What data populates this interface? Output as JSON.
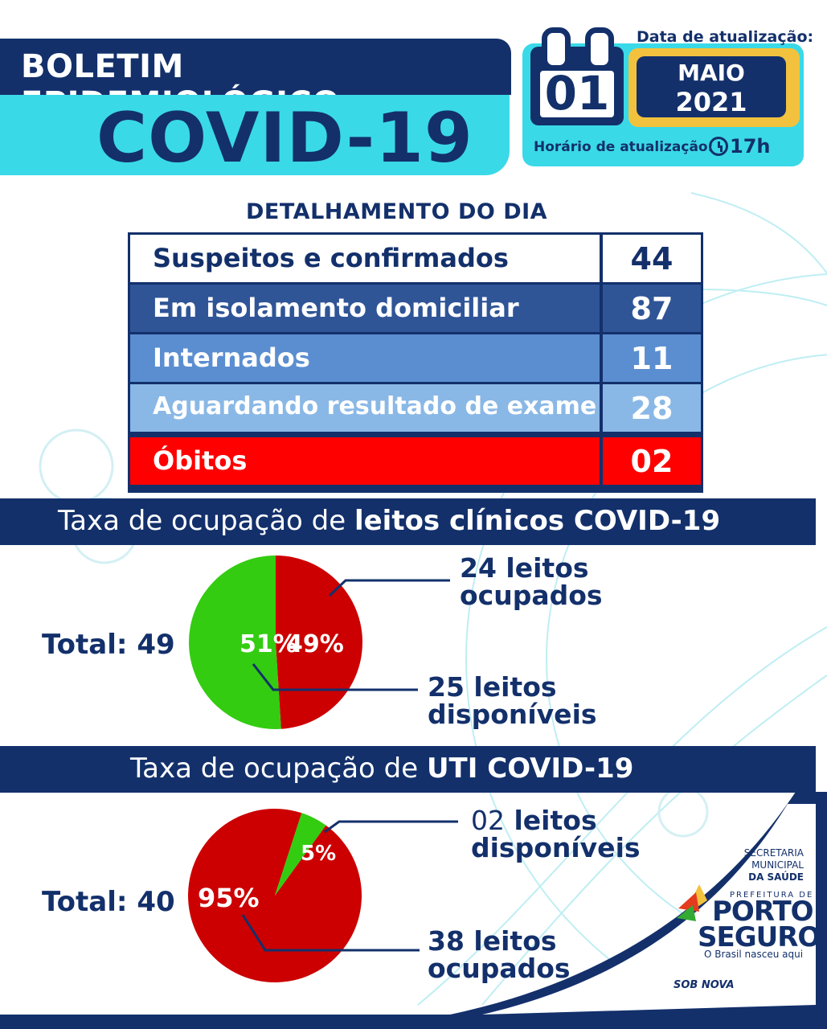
{
  "header": {
    "title_line1": "BOLETIM EPIDEMIOLÓGICO",
    "title_line2": "COVID-19"
  },
  "update": {
    "date_label": "Data de atualização:",
    "day": "01",
    "month": "MAIO",
    "year": "2021",
    "time_label": "Horário de atualização:",
    "time": "17h"
  },
  "detail": {
    "title": "DETALHAMENTO DO DIA",
    "rows": [
      {
        "label": "Suspeitos e confirmados",
        "value": "44",
        "bg": "#ffffff",
        "color": "#13306b"
      },
      {
        "label": "Em isolamento domiciliar",
        "value": "87",
        "bg": "#2f5597",
        "color": "#ffffff"
      },
      {
        "label": "Internados",
        "value": "11",
        "bg": "#5b8ed0",
        "color": "#ffffff"
      },
      {
        "label": "Aguardando resultado de exame",
        "value": "28",
        "bg": "#8ab8e6",
        "color": "#ffffff"
      },
      {
        "label": "Óbitos",
        "value": "02",
        "bg": "#ff0000",
        "color": "#ffffff"
      }
    ]
  },
  "clinical": {
    "banner_prefix": "Taxa de ocupação de ",
    "banner_bold": "leitos clínicos COVID-19",
    "total": "Total: 49",
    "occupied_pct": "49%",
    "available_pct": "51%",
    "occupied_label_line1": "24 leitos",
    "occupied_label_line2": "ocupados",
    "available_label_line1": "25 leitos",
    "available_label_line2": "disponíveis"
  },
  "uti": {
    "banner_prefix": "Taxa de ocupação de ",
    "banner_bold": "UTI COVID-19",
    "total": "Total: 40",
    "occupied_pct": "95%",
    "available_pct": "5%",
    "available_label_num": "02",
    "available_label_word": " leitos",
    "available_label_line2": "disponíveis",
    "occupied_label_line1": "38 leitos",
    "occupied_label_line2": "ocupados"
  },
  "brand": {
    "secretaria_line1": "SECRETARIA",
    "secretaria_line2": "MUNICIPAL",
    "secretaria_line3": "DA SAÚDE",
    "prefeitura": "PREFEITURA DE",
    "porto": "PORTO",
    "seguro": "SEGURO",
    "slogan": "O Brasil nasceu aqui",
    "sobnova": "SOB NOVA"
  },
  "chart_data": [
    {
      "type": "pie",
      "title": "Taxa de ocupação de leitos clínicos COVID-19",
      "categories": [
        "24 leitos ocupados",
        "25 leitos disponíveis"
      ],
      "values": [
        49,
        51
      ],
      "colors": [
        "#cc0000",
        "#33cc11"
      ]
    },
    {
      "type": "pie",
      "title": "Taxa de ocupação de UTI COVID-19",
      "categories": [
        "38 leitos ocupados",
        "02 leitos disponíveis"
      ],
      "values": [
        95,
        5
      ],
      "colors": [
        "#cc0000",
        "#33cc11"
      ]
    }
  ],
  "colors": {
    "navy": "#13306b",
    "cyan": "#3ad9e8",
    "yellow": "#f2c23e",
    "red": "#cc0000",
    "green": "#33cc11"
  }
}
